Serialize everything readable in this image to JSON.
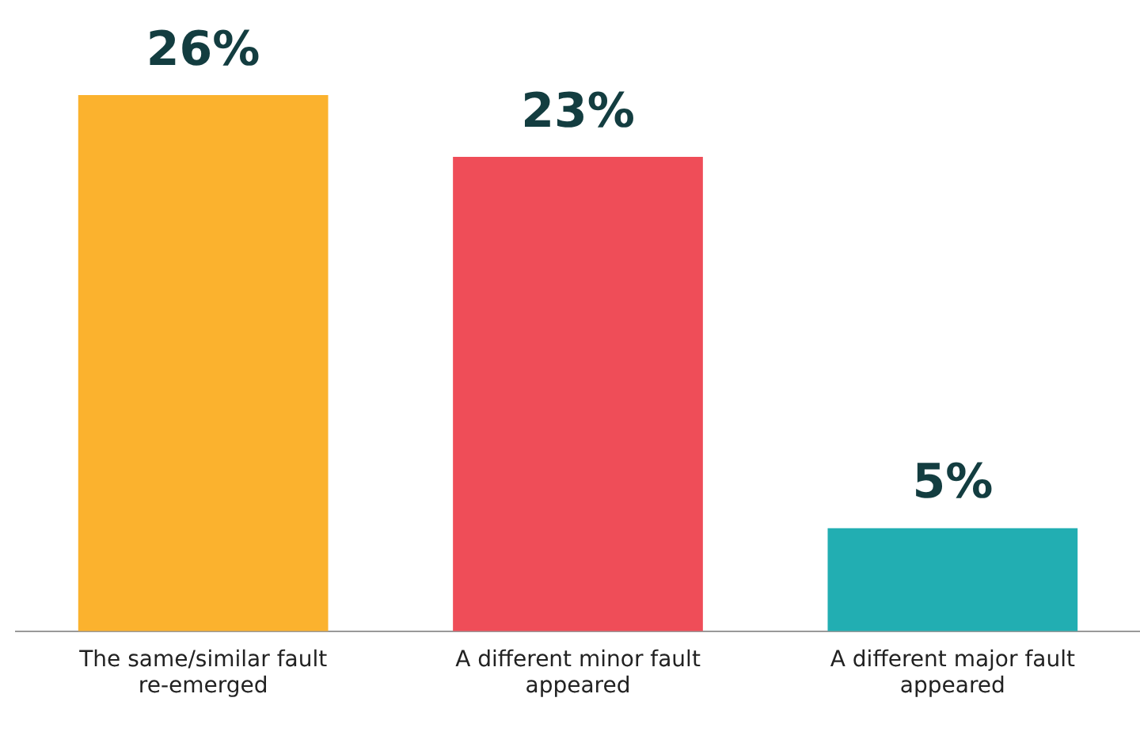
{
  "chart_data": {
    "type": "bar",
    "categories": [
      "The same/similar fault re-emerged",
      "A different minor fault appeared",
      "A different major fault appeared"
    ],
    "values": [
      26,
      23,
      5
    ],
    "colors": [
      "#fbb22e",
      "#ef4d58",
      "#22aeb2"
    ],
    "value_labels": [
      "26%",
      "23%",
      "5%"
    ],
    "grid": false,
    "legend": false
  }
}
